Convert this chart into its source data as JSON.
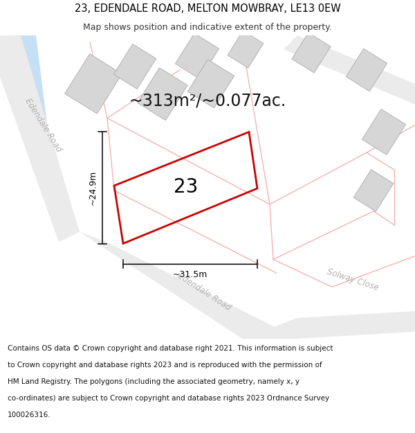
{
  "title_line1": "23, EDENDALE ROAD, MELTON MOWBRAY, LE13 0EW",
  "title_line2": "Map shows position and indicative extent of the property.",
  "area_text": "~313m²/~0.077ac.",
  "property_number": "23",
  "dim_width": "~31.5m",
  "dim_height": "~24.9m",
  "road_label_ul": "Edendale Road",
  "road_label_bl": "Edendale Road",
  "road_label_br": "Solway Close",
  "footer_lines": [
    "Contains OS data © Crown copyright and database right 2021. This information is subject",
    "to Crown copyright and database rights 2023 and is reproduced with the permission of",
    "HM Land Registry. The polygons (including the associated geometry, namely x, y",
    "co-ordinates) are subject to Crown copyright and database rights 2023 Ordnance Survey",
    "100026316."
  ],
  "bg_color": "#ffffff",
  "map_bg": "#f7f6f4",
  "building_fill": "#d6d6d6",
  "building_edge": "#aaaaaa",
  "plot_line_color": "#f5aaaa",
  "water_color": "#c5dff5",
  "highlight_color": "#cc0000",
  "dim_line_color": "#000000",
  "road_fill": "#ebebeb",
  "title_fontsize": 10.5,
  "subtitle_fontsize": 9,
  "area_fontsize": 17,
  "property_num_fontsize": 20,
  "footer_fontsize": 7.5,
  "road_label_fontsize": 8.5,
  "dim_fontsize": 9
}
